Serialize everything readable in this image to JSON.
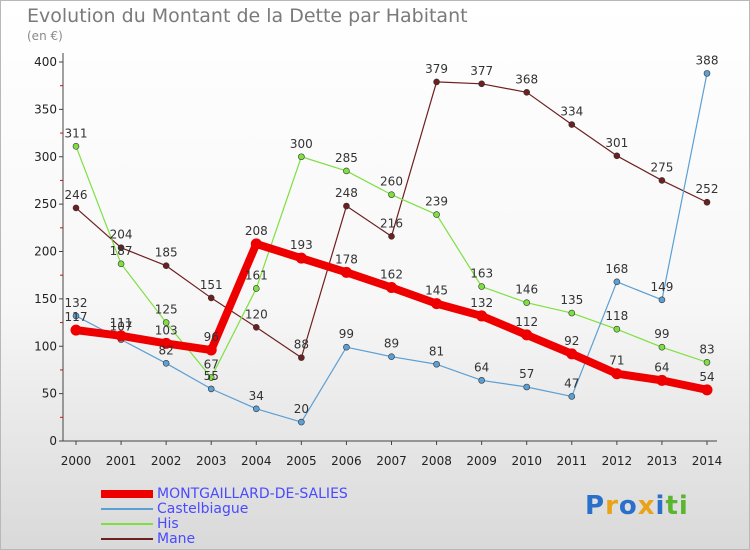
{
  "chart_data": {
    "type": "line",
    "title": "Evolution du Montant de la Dette par Habitant",
    "subtitle": "(en €)",
    "xlabel": "",
    "ylabel": "",
    "ylim": [
      0,
      400
    ],
    "yticks": [
      0,
      50,
      100,
      150,
      200,
      250,
      300,
      350,
      400
    ],
    "x": [
      "2000",
      "2001",
      "2002",
      "2003",
      "2004",
      "2005",
      "2006",
      "2007",
      "2008",
      "2009",
      "2010",
      "2011",
      "2012",
      "2013",
      "2014"
    ],
    "series": [
      {
        "name": "Mane",
        "color": "#6e1f1f",
        "width": 1.2,
        "values": [
          246,
          204,
          185,
          151,
          120,
          88,
          248,
          216,
          379,
          377,
          368,
          334,
          301,
          275,
          252
        ]
      },
      {
        "name": "His",
        "color": "#7ee040",
        "width": 1.2,
        "values": [
          311,
          187,
          125,
          67,
          161,
          300,
          285,
          260,
          239,
          163,
          146,
          135,
          118,
          99,
          83
        ]
      },
      {
        "name": "Castelbiague",
        "color": "#5b9fd4",
        "width": 1.2,
        "values": [
          132,
          107,
          82,
          55,
          34,
          20,
          99,
          89,
          81,
          64,
          57,
          47,
          168,
          149,
          388
        ]
      },
      {
        "name": "MONTGAILLARD-DE-SALIES",
        "color": "#ee0000",
        "width": 8,
        "values": [
          117,
          111,
          103,
          96,
          208,
          193,
          178,
          162,
          145,
          132,
          112,
          92,
          71,
          64,
          54
        ]
      }
    ],
    "legend": [
      "MONTGAILLARD-DE-SALIES",
      "Castelbiague",
      "His",
      "Mane"
    ],
    "legend_position": "bottom-left",
    "grid": false
  },
  "logo": {
    "text": "Proxiti",
    "letters": [
      "P",
      "r",
      "o",
      "x",
      "i",
      "t",
      "i"
    ],
    "colors": [
      "#2a6fc9",
      "#e8a317",
      "#2a6fc9",
      "#e8a317",
      "#2a6fc9",
      "#5cb531",
      "#5cb531"
    ]
  }
}
